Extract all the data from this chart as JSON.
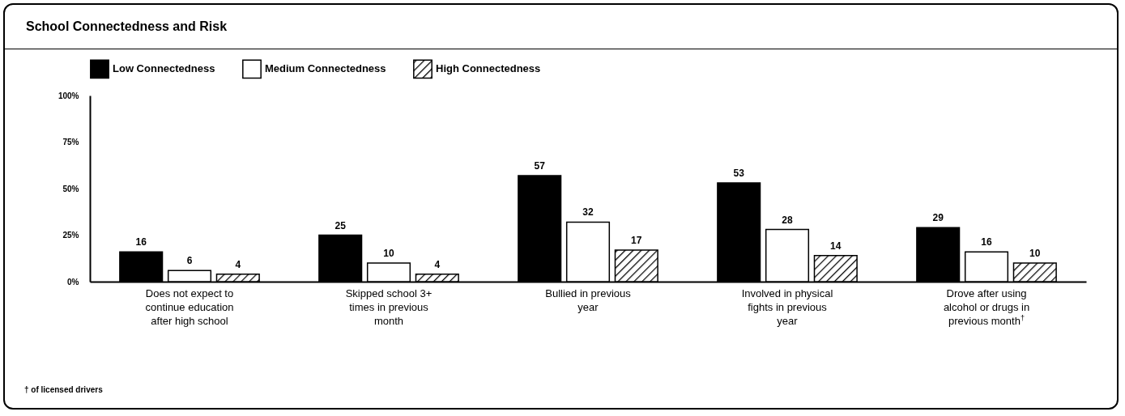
{
  "chart_data": {
    "type": "bar",
    "title": "School Connectedness and Risk",
    "categories": [
      "Does not expect to continue education after high school",
      "Skipped school 3+ times in previous month",
      "Bullied in previous year",
      "Involved in physical fights in previous year",
      "Drove after using alcohol or drugs in previous month$^{†}$"
    ],
    "series": [
      {
        "name": "Low Connectedness",
        "color": "#000000",
        "values": [
          16,
          25,
          57,
          53,
          29
        ]
      },
      {
        "name": "Medium Connectedness",
        "color": "#ffffff",
        "values": [
          6,
          10,
          32,
          28,
          16
        ]
      },
      {
        "name": "High Connectedness",
        "color": "#000000",
        "values": [
          4,
          4,
          17,
          14,
          10
        ]
      }
    ],
    "ylim": [
      0,
      100
    ],
    "yticks": [
      {
        "value": 0,
        "label": "0%"
      },
      {
        "value": 25,
        "label": "25%"
      },
      {
        "value": 50,
        "label": "50%"
      },
      {
        "value": 75,
        "label": "75%"
      },
      {
        "value": 100,
        "label": "100%"
      }
    ],
    "data_labels": true,
    "legend": "top left",
    "grid": false,
    "annotations": [
      "† of licensed drivers"
    ]
  }
}
